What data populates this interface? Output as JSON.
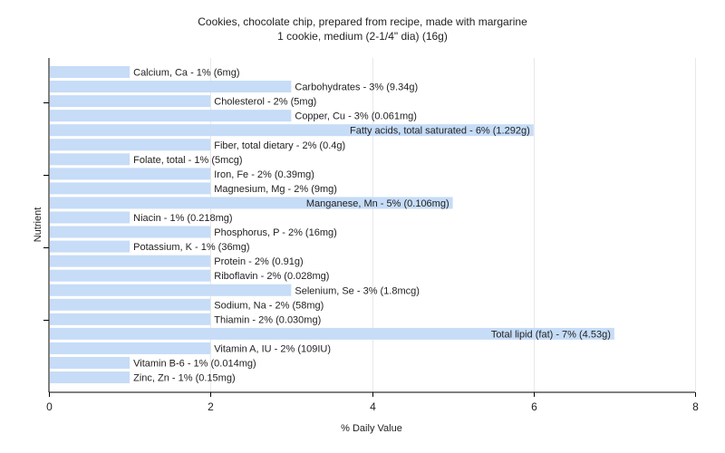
{
  "chart_data": {
    "type": "bar",
    "orientation": "horizontal",
    "title": "Cookies, chocolate chip, prepared from recipe, made with margarine",
    "subtitle": "1 cookie, medium (2-1/4\" dia) (16g)",
    "xlabel": "% Daily Value",
    "ylabel": "Nutrient",
    "xlim": [
      0,
      8
    ],
    "xticks": [
      0,
      2,
      4,
      6,
      8
    ],
    "grid": true,
    "bar_color": "#c6dcf7",
    "categories": [
      "Calcium, Ca",
      "Carbohydrates",
      "Cholesterol",
      "Copper, Cu",
      "Fatty acids, total saturated",
      "Fiber, total dietary",
      "Folate, total",
      "Iron, Fe",
      "Magnesium, Mg",
      "Manganese, Mn",
      "Niacin",
      "Phosphorus, P",
      "Potassium, K",
      "Protein",
      "Riboflavin",
      "Selenium, Se",
      "Sodium, Na",
      "Thiamin",
      "Total lipid (fat)",
      "Vitamin A, IU",
      "Vitamin B-6",
      "Zinc, Zn"
    ],
    "values": [
      1,
      3,
      2,
      3,
      6,
      2,
      1,
      2,
      2,
      5,
      1,
      2,
      1,
      2,
      2,
      3,
      2,
      2,
      7,
      2,
      1,
      1
    ],
    "labels": [
      "Calcium, Ca - 1% (6mg)",
      "Carbohydrates - 3% (9.34g)",
      "Cholesterol - 2% (5mg)",
      "Copper, Cu - 3% (0.061mg)",
      "Fatty acids, total saturated - 6% (1.292g)",
      "Fiber, total dietary - 2% (0.4g)",
      "Folate, total - 1% (5mcg)",
      "Iron, Fe - 2% (0.39mg)",
      "Magnesium, Mg - 2% (9mg)",
      "Manganese, Mn - 5% (0.106mg)",
      "Niacin - 1% (0.218mg)",
      "Phosphorus, P - 2% (16mg)",
      "Potassium, K - 1% (36mg)",
      "Protein - 2% (0.91g)",
      "Riboflavin - 2% (0.028mg)",
      "Selenium, Se - 3% (1.8mcg)",
      "Sodium, Na - 2% (58mg)",
      "Thiamin - 2% (0.030mg)",
      "Total lipid (fat) - 7% (4.53g)",
      "Vitamin A, IU - 2% (109IU)",
      "Vitamin B-6 - 1% (0.014mg)",
      "Zinc, Zn - 1% (0.15mg)"
    ]
  }
}
